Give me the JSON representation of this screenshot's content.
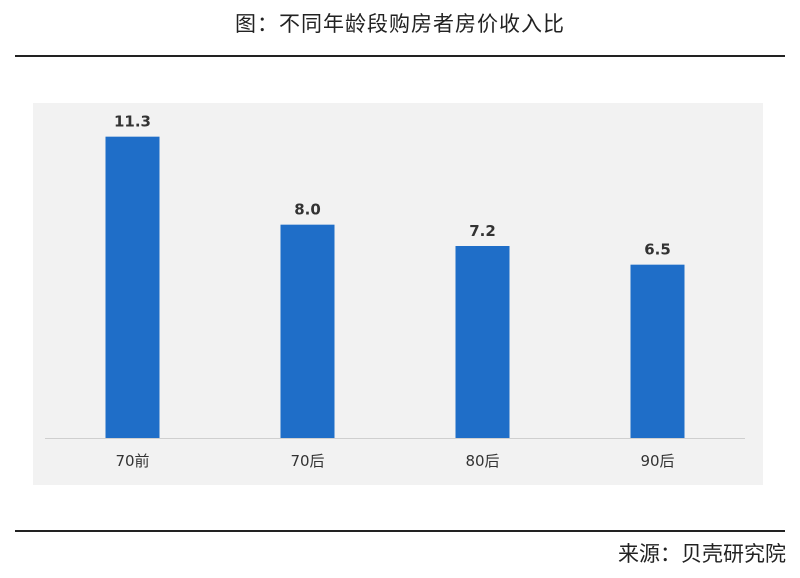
{
  "title": "图：不同年龄段购房者房价收入比",
  "source": "来源：贝壳研究院",
  "colors": {
    "bar": "#1f6ec8",
    "background": "#f2f2f2",
    "axis": "#cfcfcf"
  },
  "chart_data": {
    "type": "bar",
    "title": "图：不同年龄段购房者房价收入比",
    "categories": [
      "70前",
      "70后",
      "80后",
      "90后"
    ],
    "values": [
      11.3,
      8.0,
      7.2,
      6.5
    ],
    "data_labels": [
      "11.3",
      "8.0",
      "7.2",
      "6.5"
    ],
    "xlabel": "",
    "ylabel": "",
    "ylim": [
      0,
      12
    ],
    "grid": false,
    "legend": "none"
  }
}
